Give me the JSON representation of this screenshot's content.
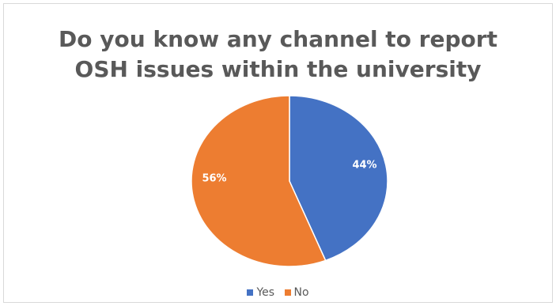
{
  "chart_data": {
    "type": "pie",
    "title_lines": [
      "Do you know any channel to report",
      "OSH issues within the university"
    ],
    "slices": [
      {
        "label": "Yes",
        "value": 44,
        "data_label": "44%",
        "color": "#4472C4"
      },
      {
        "label": "No",
        "value": 56,
        "data_label": "56%",
        "color": "#ED7D31"
      }
    ],
    "legend_position": "bottom"
  }
}
